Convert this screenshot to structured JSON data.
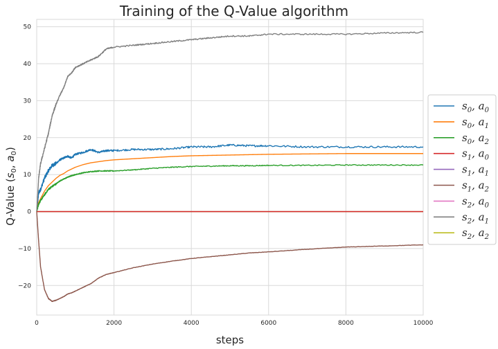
{
  "chart_data": {
    "type": "line",
    "title": "Training of the Q-Value algorithm",
    "xlabel": "steps",
    "ylabel": "Q-Value (s0, a0)",
    "xlim": [
      0,
      10000
    ],
    "ylim": [
      -28,
      52
    ],
    "x_ticks": [
      0,
      2000,
      4000,
      6000,
      8000,
      10000
    ],
    "y_ticks": [
      -20,
      -10,
      0,
      10,
      20,
      30,
      40,
      50
    ],
    "grid": true,
    "legend_position": "right, outside plot",
    "x": [
      0,
      50,
      100,
      200,
      300,
      400,
      500,
      600,
      700,
      800,
      900,
      1000,
      1200,
      1400,
      1600,
      1800,
      2000,
      2500,
      3000,
      3500,
      4000,
      4500,
      5000,
      5500,
      6000,
      7000,
      8000,
      9000,
      10000
    ],
    "series": [
      {
        "name": "s0, a0",
        "color": "#1f77b4",
        "noise": 0.5,
        "values": [
          0,
          5,
          6,
          9,
          11,
          12.5,
          13,
          14,
          14.5,
          15,
          14.5,
          15.5,
          16,
          16.8,
          16,
          16.5,
          16.5,
          16.8,
          16.8,
          17,
          17.5,
          17.5,
          18,
          17.8,
          17.8,
          17.5,
          17.5,
          17.5,
          17.5
        ]
      },
      {
        "name": "s0, a1",
        "color": "#ff7f0e",
        "noise": 0,
        "values": [
          0,
          2.5,
          3.5,
          5.5,
          7,
          8,
          9,
          9.8,
          10.3,
          11,
          11.5,
          12,
          12.7,
          13.2,
          13.5,
          13.8,
          14,
          14.3,
          14.6,
          14.9,
          15.1,
          15.2,
          15.3,
          15.4,
          15.5,
          15.6,
          15.7,
          15.7,
          15.7
        ]
      },
      {
        "name": "s0, a2",
        "color": "#2ca02c",
        "noise": 0.25,
        "values": [
          0,
          2,
          3,
          4.5,
          6,
          6.8,
          7.5,
          8.3,
          8.8,
          9.3,
          9.7,
          10,
          10.5,
          10.8,
          11,
          11,
          11,
          11.3,
          11.7,
          12,
          12.2,
          12.3,
          12.4,
          12.4,
          12.5,
          12.5,
          12.6,
          12.6,
          12.6
        ]
      },
      {
        "name": "s1, a0",
        "color": "#d62728",
        "noise": 0,
        "values": [
          0,
          0,
          0,
          0,
          0,
          0,
          0,
          0,
          0,
          0,
          0,
          0,
          0,
          0,
          0,
          0,
          0,
          0,
          0,
          0,
          0,
          0,
          0,
          0,
          0,
          0,
          0,
          0,
          0
        ]
      },
      {
        "name": "s1, a1",
        "color": "#9467bd",
        "noise": 0,
        "values": [
          0,
          0,
          0,
          0,
          0,
          0,
          0,
          0,
          0,
          0,
          0,
          0,
          0,
          0,
          0,
          0,
          0,
          0,
          0,
          0,
          0,
          0,
          0,
          0,
          0,
          0,
          0,
          0,
          0
        ]
      },
      {
        "name": "s1, a2",
        "color": "#8c564b",
        "noise": 0.1,
        "values": [
          0,
          -8,
          -15,
          -21,
          -23.5,
          -24.3,
          -24,
          -23.5,
          -23,
          -22.3,
          -22,
          -21.5,
          -20.5,
          -19.5,
          -18,
          -17,
          -16.5,
          -15.2,
          -14.2,
          -13.4,
          -12.7,
          -12.2,
          -11.7,
          -11.2,
          -10.9,
          -10.2,
          -9.6,
          -9.3,
          -9
        ]
      },
      {
        "name": "s2, a0",
        "color": "#e377c2",
        "noise": 0,
        "values": [
          0,
          0,
          0,
          0,
          0,
          0,
          0,
          0,
          0,
          0,
          0,
          0,
          0,
          0,
          0,
          0,
          0,
          0,
          0,
          0,
          0,
          0,
          0,
          0,
          0,
          0,
          0,
          0,
          0
        ]
      },
      {
        "name": "s2, a1",
        "color": "#7f7f7f",
        "noise": 0.35,
        "values": [
          0,
          9,
          13,
          17,
          21,
          26,
          29,
          31.5,
          33.5,
          36.5,
          37.5,
          39,
          40,
          41,
          42,
          44,
          44.5,
          45,
          45.5,
          46,
          46.5,
          47,
          47.5,
          47.5,
          48,
          48,
          48,
          48.3,
          48.5
        ]
      },
      {
        "name": "s2, a2",
        "color": "#bcbd22",
        "noise": 0,
        "values": [
          0,
          0,
          0,
          0,
          0,
          0,
          0,
          0,
          0,
          0,
          0,
          0,
          0,
          0,
          0,
          0,
          0,
          0,
          0,
          0,
          0,
          0,
          0,
          0,
          0,
          0,
          0,
          0,
          0
        ]
      }
    ]
  },
  "colors": {
    "grid": "#d9d9d9",
    "background": "#ffffff",
    "legend_border": "#cccccc"
  }
}
